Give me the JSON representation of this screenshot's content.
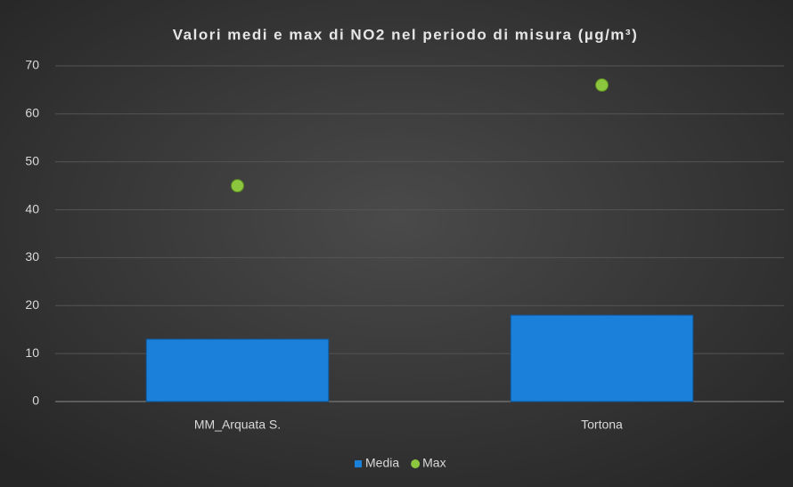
{
  "chart_data": {
    "type": "bar",
    "title": "Valori medi e max di NO2 nel periodo di misura (µg/m³)",
    "categories": [
      "MM_Arquata S.",
      "Tortona"
    ],
    "series": [
      {
        "name": "Media",
        "type": "bar",
        "color": "#1a80d9",
        "values": [
          13,
          18
        ]
      },
      {
        "name": "Max",
        "type": "scatter",
        "color": "#8cc63f",
        "values": [
          45,
          66
        ]
      }
    ],
    "ylim": [
      0,
      70
    ],
    "yticks": [
      0,
      10,
      20,
      30,
      40,
      50,
      60,
      70
    ],
    "grid": true,
    "legend": "bottom"
  }
}
